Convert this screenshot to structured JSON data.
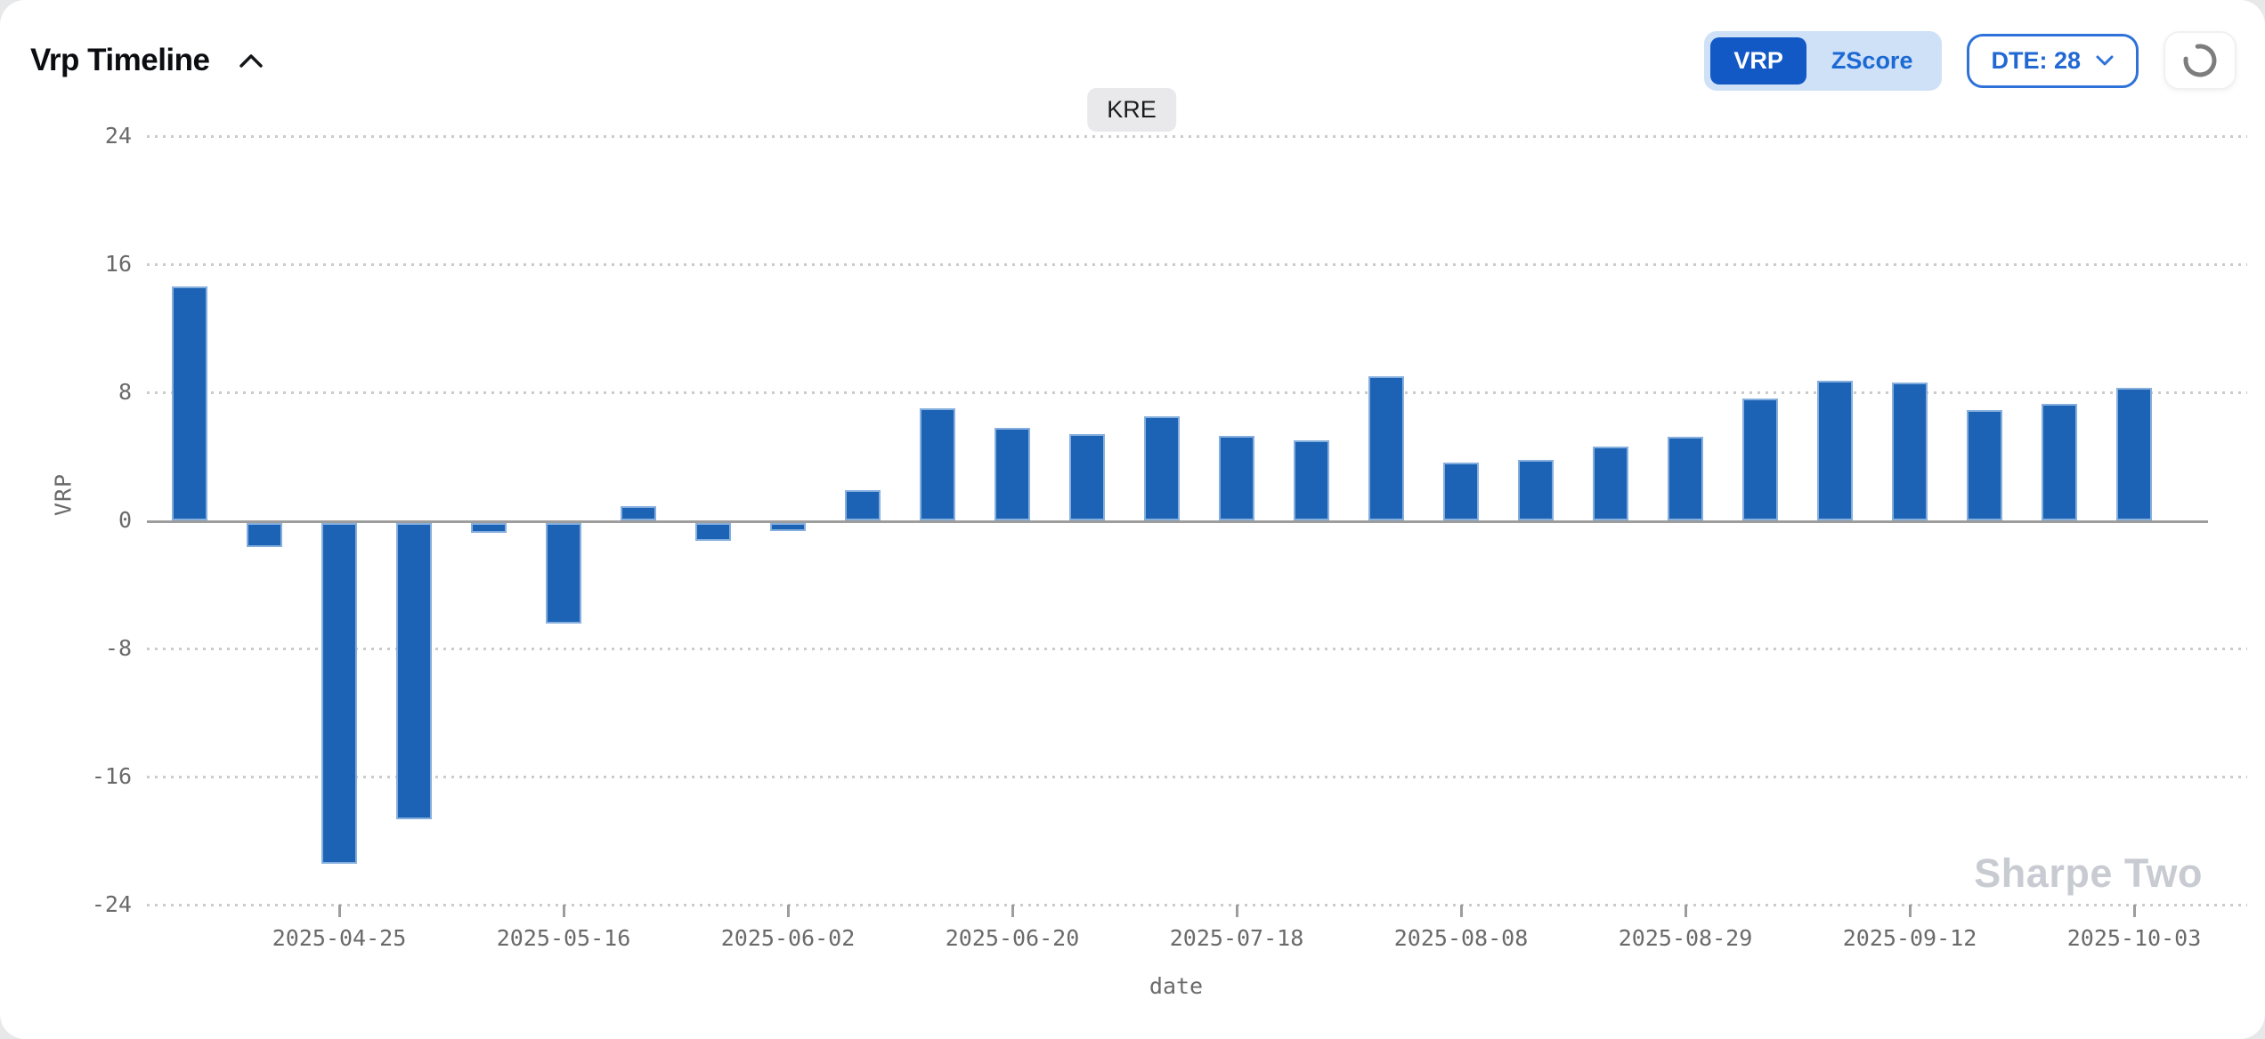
{
  "header": {
    "title": "Vrp Timeline",
    "collapse_icon": "chevron-up",
    "toggle": {
      "options": [
        "VRP",
        "ZScore"
      ],
      "selected": "VRP"
    },
    "dte_button": {
      "label": "DTE: 28"
    },
    "loading": true
  },
  "colors": {
    "bar": "#1c63b5",
    "bar_edge": "#9bbbe2",
    "accent_blue": "#1259c6",
    "toggle_bg": "#cfe1f7",
    "outline_blue": "#2e72d9",
    "grid": "#cbcbcb",
    "axis_line": "#9d9d9d",
    "tick_text": "#6a6a6a",
    "badge_bg": "#e9e9ec",
    "watermark": "#c8cbd1",
    "spinner": "#7d7d7d"
  },
  "chart_data": {
    "type": "bar",
    "title_annotation": "KRE",
    "xlabel": "date",
    "ylabel": "VRP",
    "ylim": [
      -24,
      24
    ],
    "yticks": [
      24,
      16,
      8,
      0,
      -8,
      -16,
      -24
    ],
    "grid": "dotted-horizontal",
    "legend": "none",
    "bar_color": "#1c63b5",
    "values": [
      14.6,
      -1.5,
      -21.3,
      -18.5,
      -0.6,
      -6.3,
      0.9,
      -1.1,
      -0.5,
      1.9,
      7.0,
      5.8,
      5.4,
      6.5,
      5.3,
      5.0,
      9.0,
      3.6,
      3.8,
      4.6,
      5.2,
      7.6,
      8.7,
      8.6,
      6.9,
      7.3,
      8.3
    ],
    "xticks": [
      {
        "index": 2,
        "label": "2025-04-25"
      },
      {
        "index": 5,
        "label": "2025-05-16"
      },
      {
        "index": 8,
        "label": "2025-06-02"
      },
      {
        "index": 11,
        "label": "2025-06-20"
      },
      {
        "index": 14,
        "label": "2025-07-18"
      },
      {
        "index": 17,
        "label": "2025-08-08"
      },
      {
        "index": 20,
        "label": "2025-08-29"
      },
      {
        "index": 23,
        "label": "2025-09-12"
      },
      {
        "index": 26,
        "label": "2025-10-03"
      }
    ],
    "watermark": "Sharpe Two"
  }
}
